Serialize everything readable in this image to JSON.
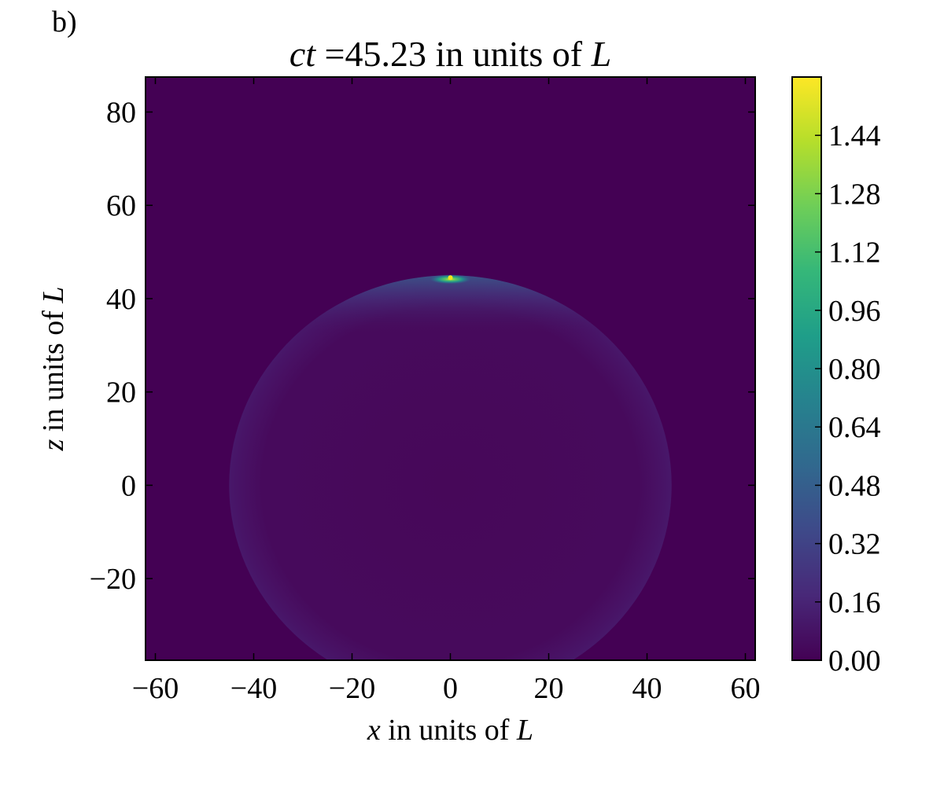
{
  "panel_label": "b)",
  "title": {
    "prefix": "ct",
    "middle": " =45.23 in units of ",
    "suffix": "L"
  },
  "xlabel": {
    "var": "x",
    "text": " in units of ",
    "unit": "L"
  },
  "ylabel": {
    "var": "z",
    "text": " in units of ",
    "unit": "L"
  },
  "chart_data": {
    "type": "heatmap",
    "title": "ct =45.23 in units of L",
    "xlabel": "x in units of L",
    "ylabel": "z in units of L",
    "xlim": [
      -62,
      62
    ],
    "ylim": [
      -37.5,
      87.5
    ],
    "x_ticks": [
      -60,
      -40,
      -20,
      0,
      20,
      40,
      60
    ],
    "x_tick_labels": [
      "−60",
      "−40",
      "−20",
      "0",
      "20",
      "40",
      "60"
    ],
    "y_ticks": [
      -20,
      0,
      20,
      40,
      60,
      80
    ],
    "y_tick_labels": [
      "−20",
      "0",
      "20",
      "40",
      "60",
      "80"
    ],
    "colormap": "viridis",
    "colorbar": {
      "range": [
        0,
        1.6
      ],
      "ticks": [
        0.0,
        0.16,
        0.32,
        0.48,
        0.64,
        0.8,
        0.96,
        1.12,
        1.28,
        1.44
      ],
      "tick_labels": [
        "0.00",
        "0.16",
        "0.32",
        "0.48",
        "0.64",
        "0.80",
        "0.96",
        "1.12",
        "1.28",
        "1.44"
      ]
    },
    "features": {
      "background_value": 0.0,
      "sphere": {
        "center_x": 0,
        "center_z": 0,
        "radius": 45,
        "interior_value": 0.06,
        "rim_value": 0.2
      },
      "hotspot": {
        "x": 0,
        "z": 44.5,
        "peak_value": 1.55
      }
    },
    "grid": false
  }
}
